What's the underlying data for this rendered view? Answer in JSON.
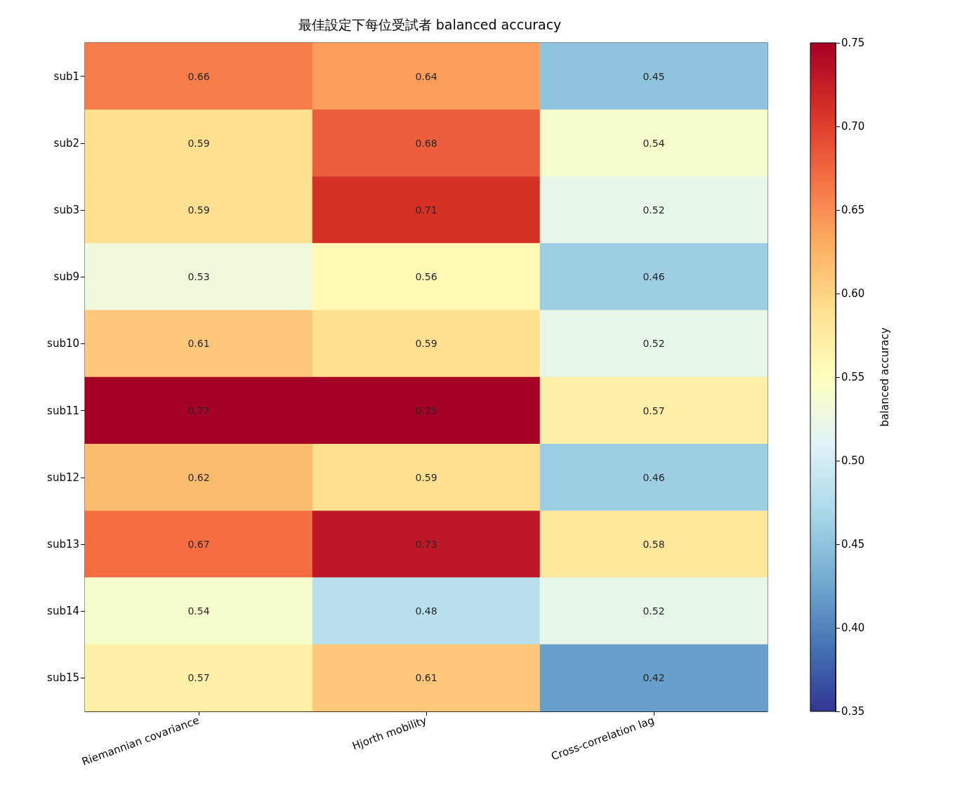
{
  "chart_data": {
    "type": "heatmap",
    "title": "最佳設定下每位受試者 balanced accuracy",
    "categories": [
      "Riemannian covariance",
      "Hjorth mobility",
      "Cross-correlation lag"
    ],
    "y_categories": [
      "sub1",
      "sub2",
      "sub3",
      "sub9",
      "sub10",
      "sub11",
      "sub12",
      "sub13",
      "sub14",
      "sub15"
    ],
    "cells": [
      [
        0.66,
        0.64,
        0.45
      ],
      [
        0.59,
        0.68,
        0.54
      ],
      [
        0.59,
        0.71,
        0.52
      ],
      [
        0.53,
        0.56,
        0.46
      ],
      [
        0.61,
        0.59,
        0.52
      ],
      [
        0.77,
        0.75,
        0.57
      ],
      [
        0.62,
        0.59,
        0.46
      ],
      [
        0.67,
        0.73,
        0.58
      ],
      [
        0.54,
        0.48,
        0.52
      ],
      [
        0.57,
        0.61,
        0.42
      ]
    ],
    "clabel": "balanced accuracy",
    "clim": [
      0.35,
      0.75
    ],
    "cticks": [
      0.35,
      {
        "value": 0.4,
        "label": "0.40"
      },
      0.45,
      {
        "value": 0.5,
        "label": "0.50"
      },
      0.55,
      {
        "value": 0.6,
        "label": "0.60"
      },
      0.65,
      {
        "value": 0.7,
        "label": "0.70"
      },
      0.75
    ],
    "data_labels": true
  }
}
